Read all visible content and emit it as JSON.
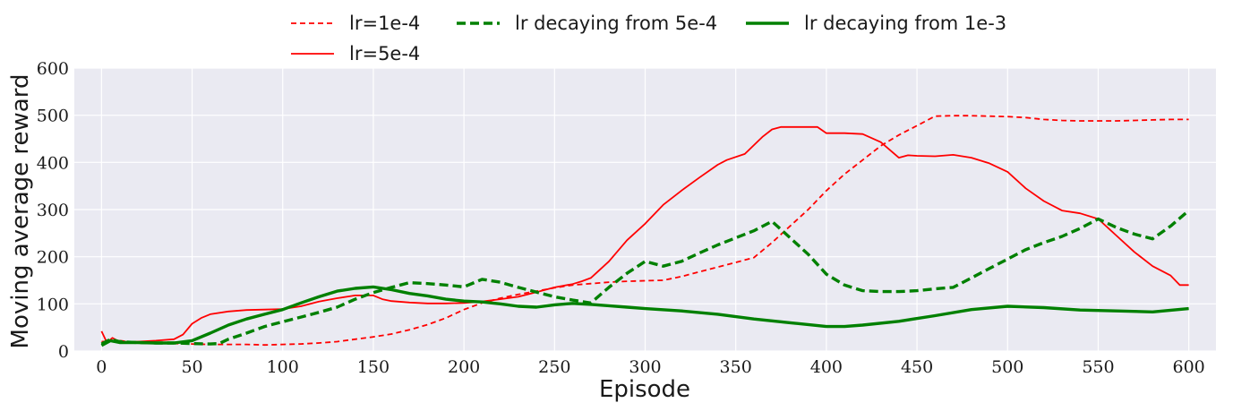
{
  "chart_data": {
    "type": "line",
    "title": "",
    "xlabel": "Episode",
    "ylabel": "Moving average reward",
    "xlim": [
      -15,
      615
    ],
    "ylim": [
      0,
      600
    ],
    "xticks": [
      0,
      50,
      100,
      150,
      200,
      250,
      300,
      350,
      400,
      450,
      500,
      550,
      600
    ],
    "yticks": [
      0,
      100,
      200,
      300,
      400,
      500,
      600
    ],
    "grid": true,
    "legend_position": "top-center",
    "colors": {
      "background": "#eaeaf2",
      "grid": "#ffffff",
      "red": "#ff0000",
      "green": "#008000"
    },
    "series": [
      {
        "name": "lr=1e-4",
        "color": "#ff0000",
        "style": "dashed",
        "points": [
          [
            0,
            20
          ],
          [
            10,
            22
          ],
          [
            20,
            18
          ],
          [
            30,
            17
          ],
          [
            40,
            16
          ],
          [
            50,
            15
          ],
          [
            60,
            14
          ],
          [
            70,
            14
          ],
          [
            80,
            14
          ],
          [
            90,
            13
          ],
          [
            100,
            14
          ],
          [
            110,
            15
          ],
          [
            120,
            17
          ],
          [
            130,
            20
          ],
          [
            140,
            25
          ],
          [
            150,
            30
          ],
          [
            160,
            36
          ],
          [
            170,
            45
          ],
          [
            180,
            56
          ],
          [
            190,
            70
          ],
          [
            200,
            88
          ],
          [
            210,
            102
          ],
          [
            220,
            112
          ],
          [
            230,
            120
          ],
          [
            240,
            127
          ],
          [
            250,
            134
          ],
          [
            260,
            140
          ],
          [
            270,
            143
          ],
          [
            280,
            146
          ],
          [
            290,
            148
          ],
          [
            300,
            149
          ],
          [
            310,
            150
          ],
          [
            320,
            158
          ],
          [
            330,
            168
          ],
          [
            340,
            178
          ],
          [
            350,
            188
          ],
          [
            360,
            198
          ],
          [
            370,
            230
          ],
          [
            380,
            265
          ],
          [
            390,
            300
          ],
          [
            400,
            340
          ],
          [
            410,
            375
          ],
          [
            420,
            405
          ],
          [
            430,
            435
          ],
          [
            440,
            458
          ],
          [
            450,
            478
          ],
          [
            460,
            498
          ],
          [
            470,
            499
          ],
          [
            480,
            499
          ],
          [
            490,
            498
          ],
          [
            500,
            497
          ],
          [
            510,
            495
          ],
          [
            520,
            491
          ],
          [
            530,
            489
          ],
          [
            540,
            488
          ],
          [
            550,
            488
          ],
          [
            560,
            488
          ],
          [
            570,
            489
          ],
          [
            580,
            490
          ],
          [
            590,
            491
          ],
          [
            600,
            491
          ]
        ]
      },
      {
        "name": "lr=5e-4",
        "color": "#ff0000",
        "style": "solid",
        "points": [
          [
            0,
            42
          ],
          [
            3,
            18
          ],
          [
            6,
            28
          ],
          [
            10,
            20
          ],
          [
            20,
            20
          ],
          [
            30,
            22
          ],
          [
            40,
            25
          ],
          [
            45,
            35
          ],
          [
            50,
            58
          ],
          [
            55,
            70
          ],
          [
            60,
            78
          ],
          [
            70,
            84
          ],
          [
            80,
            87
          ],
          [
            90,
            88
          ],
          [
            100,
            89
          ],
          [
            110,
            95
          ],
          [
            120,
            105
          ],
          [
            130,
            112
          ],
          [
            140,
            118
          ],
          [
            150,
            118
          ],
          [
            155,
            110
          ],
          [
            160,
            106
          ],
          [
            170,
            103
          ],
          [
            180,
            101
          ],
          [
            190,
            101
          ],
          [
            200,
            102
          ],
          [
            210,
            105
          ],
          [
            220,
            110
          ],
          [
            230,
            115
          ],
          [
            240,
            125
          ],
          [
            250,
            135
          ],
          [
            260,
            142
          ],
          [
            265,
            148
          ],
          [
            270,
            155
          ],
          [
            280,
            190
          ],
          [
            290,
            235
          ],
          [
            300,
            270
          ],
          [
            310,
            310
          ],
          [
            320,
            340
          ],
          [
            330,
            368
          ],
          [
            340,
            395
          ],
          [
            345,
            405
          ],
          [
            355,
            418
          ],
          [
            365,
            455
          ],
          [
            370,
            470
          ],
          [
            375,
            475
          ],
          [
            385,
            475
          ],
          [
            395,
            475
          ],
          [
            400,
            462
          ],
          [
            410,
            462
          ],
          [
            420,
            460
          ],
          [
            430,
            443
          ],
          [
            440,
            410
          ],
          [
            445,
            415
          ],
          [
            450,
            414
          ],
          [
            460,
            413
          ],
          [
            470,
            416
          ],
          [
            480,
            410
          ],
          [
            490,
            398
          ],
          [
            500,
            380
          ],
          [
            510,
            345
          ],
          [
            520,
            318
          ],
          [
            530,
            298
          ],
          [
            540,
            292
          ],
          [
            550,
            280
          ],
          [
            560,
            245
          ],
          [
            570,
            210
          ],
          [
            580,
            180
          ],
          [
            590,
            160
          ],
          [
            595,
            140
          ],
          [
            600,
            140
          ]
        ]
      },
      {
        "name": "lr decaying from 5e-4",
        "color": "#008000",
        "style": "dashed",
        "points": [
          [
            0,
            15
          ],
          [
            5,
            25
          ],
          [
            10,
            20
          ],
          [
            20,
            18
          ],
          [
            30,
            17
          ],
          [
            40,
            17
          ],
          [
            50,
            16
          ],
          [
            60,
            15
          ],
          [
            65,
            16
          ],
          [
            70,
            25
          ],
          [
            80,
            38
          ],
          [
            90,
            52
          ],
          [
            100,
            62
          ],
          [
            110,
            72
          ],
          [
            120,
            82
          ],
          [
            130,
            93
          ],
          [
            140,
            110
          ],
          [
            150,
            124
          ],
          [
            160,
            135
          ],
          [
            170,
            145
          ],
          [
            180,
            143
          ],
          [
            190,
            140
          ],
          [
            200,
            136
          ],
          [
            210,
            152
          ],
          [
            220,
            146
          ],
          [
            230,
            135
          ],
          [
            240,
            125
          ],
          [
            250,
            115
          ],
          [
            260,
            108
          ],
          [
            270,
            102
          ],
          [
            280,
            135
          ],
          [
            290,
            165
          ],
          [
            300,
            190
          ],
          [
            310,
            180
          ],
          [
            320,
            190
          ],
          [
            330,
            208
          ],
          [
            340,
            225
          ],
          [
            350,
            240
          ],
          [
            360,
            255
          ],
          [
            370,
            275
          ],
          [
            380,
            240
          ],
          [
            390,
            205
          ],
          [
            400,
            163
          ],
          [
            410,
            140
          ],
          [
            420,
            128
          ],
          [
            430,
            126
          ],
          [
            440,
            126
          ],
          [
            450,
            128
          ],
          [
            460,
            132
          ],
          [
            470,
            135
          ],
          [
            480,
            155
          ],
          [
            490,
            175
          ],
          [
            500,
            195
          ],
          [
            510,
            215
          ],
          [
            520,
            230
          ],
          [
            530,
            243
          ],
          [
            540,
            260
          ],
          [
            550,
            280
          ],
          [
            560,
            262
          ],
          [
            570,
            248
          ],
          [
            580,
            238
          ],
          [
            590,
            265
          ],
          [
            600,
            298
          ]
        ]
      },
      {
        "name": "lr decaying from 1e-3",
        "color": "#008000",
        "style": "solid",
        "points": [
          [
            0,
            12
          ],
          [
            5,
            22
          ],
          [
            10,
            18
          ],
          [
            20,
            18
          ],
          [
            30,
            17
          ],
          [
            40,
            17
          ],
          [
            50,
            22
          ],
          [
            60,
            38
          ],
          [
            70,
            55
          ],
          [
            80,
            68
          ],
          [
            90,
            78
          ],
          [
            100,
            88
          ],
          [
            110,
            102
          ],
          [
            120,
            115
          ],
          [
            130,
            127
          ],
          [
            140,
            133
          ],
          [
            150,
            136
          ],
          [
            160,
            130
          ],
          [
            170,
            122
          ],
          [
            180,
            117
          ],
          [
            190,
            110
          ],
          [
            200,
            106
          ],
          [
            210,
            104
          ],
          [
            220,
            100
          ],
          [
            230,
            95
          ],
          [
            240,
            93
          ],
          [
            250,
            98
          ],
          [
            260,
            101
          ],
          [
            270,
            99
          ],
          [
            280,
            96
          ],
          [
            290,
            93
          ],
          [
            300,
            90
          ],
          [
            320,
            85
          ],
          [
            340,
            78
          ],
          [
            360,
            68
          ],
          [
            380,
            60
          ],
          [
            400,
            52
          ],
          [
            410,
            52
          ],
          [
            420,
            55
          ],
          [
            440,
            63
          ],
          [
            460,
            75
          ],
          [
            480,
            88
          ],
          [
            500,
            95
          ],
          [
            520,
            92
          ],
          [
            540,
            87
          ],
          [
            560,
            85
          ],
          [
            580,
            83
          ],
          [
            600,
            90
          ]
        ]
      }
    ]
  }
}
